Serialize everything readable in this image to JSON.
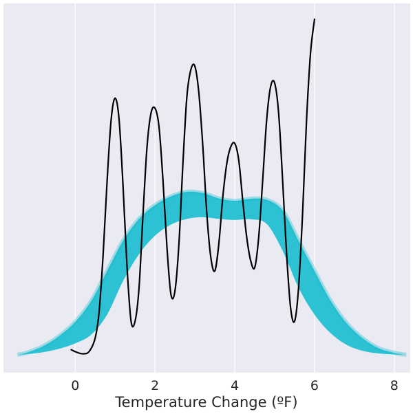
{
  "chart_data": {
    "type": "line",
    "title": "",
    "xlabel": "Temperature Change (ºF)",
    "ylabel": "",
    "xlim": [
      -1.8,
      8.4
    ],
    "ylim": [
      0,
      1
    ],
    "grid": "vertical",
    "x_ticks": [
      {
        "value": 0,
        "label": "0"
      },
      {
        "value": 2,
        "label": "2"
      },
      {
        "value": 4,
        "label": "4"
      },
      {
        "value": 6,
        "label": "6"
      },
      {
        "value": 8,
        "label": "8"
      }
    ],
    "colors": {
      "plot_background": "#eaeaf2",
      "grid": "#ffffff",
      "bootstrap_band": "#17becf",
      "observed_line": "#000000"
    },
    "series": [
      {
        "kind": "bootstrap-density-band",
        "x": [
          -1.45,
          -1.2,
          -0.8,
          -0.4,
          0.0,
          0.4,
          0.8,
          1.2,
          1.6,
          2.0,
          2.4,
          2.8,
          3.2,
          3.6,
          4.0,
          4.4,
          4.8,
          5.2,
          5.6,
          6.0,
          6.4,
          6.8,
          7.2,
          7.6,
          8.0,
          8.3
        ],
        "upper": [
          0.0,
          0.007,
          0.026,
          0.056,
          0.098,
          0.16,
          0.25,
          0.34,
          0.405,
          0.446,
          0.472,
          0.486,
          0.482,
          0.466,
          0.459,
          0.465,
          0.462,
          0.43,
          0.34,
          0.25,
          0.162,
          0.095,
          0.05,
          0.02,
          0.006,
          0.0
        ],
        "lower": [
          0.0,
          0.002,
          0.008,
          0.018,
          0.034,
          0.06,
          0.12,
          0.22,
          0.3,
          0.355,
          0.388,
          0.405,
          0.41,
          0.405,
          0.402,
          0.404,
          0.39,
          0.31,
          0.2,
          0.12,
          0.065,
          0.03,
          0.012,
          0.004,
          0.001,
          0.0
        ]
      },
      {
        "kind": "observed-density",
        "x": [
          -0.1,
          0.05,
          0.2,
          0.35,
          0.5,
          0.6,
          0.7,
          0.8,
          0.9,
          1.0,
          1.1,
          1.2,
          1.3,
          1.4,
          1.5,
          1.6,
          1.7,
          1.8,
          1.9,
          2.0,
          2.1,
          2.2,
          2.3,
          2.4,
          2.5,
          2.6,
          2.7,
          2.8,
          2.9,
          3.0,
          3.1,
          3.2,
          3.3,
          3.4,
          3.5,
          3.6,
          3.7,
          3.8,
          3.9,
          4.0,
          4.1,
          4.2,
          4.3,
          4.4,
          4.5,
          4.6,
          4.7,
          4.8,
          4.9,
          5.0,
          5.1,
          5.2,
          5.3,
          5.4,
          5.5,
          5.6,
          5.7,
          5.8,
          5.9,
          6.0
        ],
        "y": [
          0.015,
          0.007,
          0.003,
          0.01,
          0.05,
          0.13,
          0.3,
          0.52,
          0.7,
          0.765,
          0.7,
          0.5,
          0.26,
          0.1,
          0.1,
          0.2,
          0.42,
          0.62,
          0.72,
          0.735,
          0.68,
          0.52,
          0.32,
          0.18,
          0.19,
          0.33,
          0.57,
          0.77,
          0.85,
          0.86,
          0.78,
          0.62,
          0.42,
          0.29,
          0.25,
          0.33,
          0.47,
          0.57,
          0.62,
          0.63,
          0.58,
          0.46,
          0.35,
          0.28,
          0.26,
          0.35,
          0.52,
          0.7,
          0.8,
          0.81,
          0.72,
          0.52,
          0.3,
          0.14,
          0.1,
          0.2,
          0.42,
          0.7,
          0.9,
          1.0
        ]
      }
    ]
  }
}
